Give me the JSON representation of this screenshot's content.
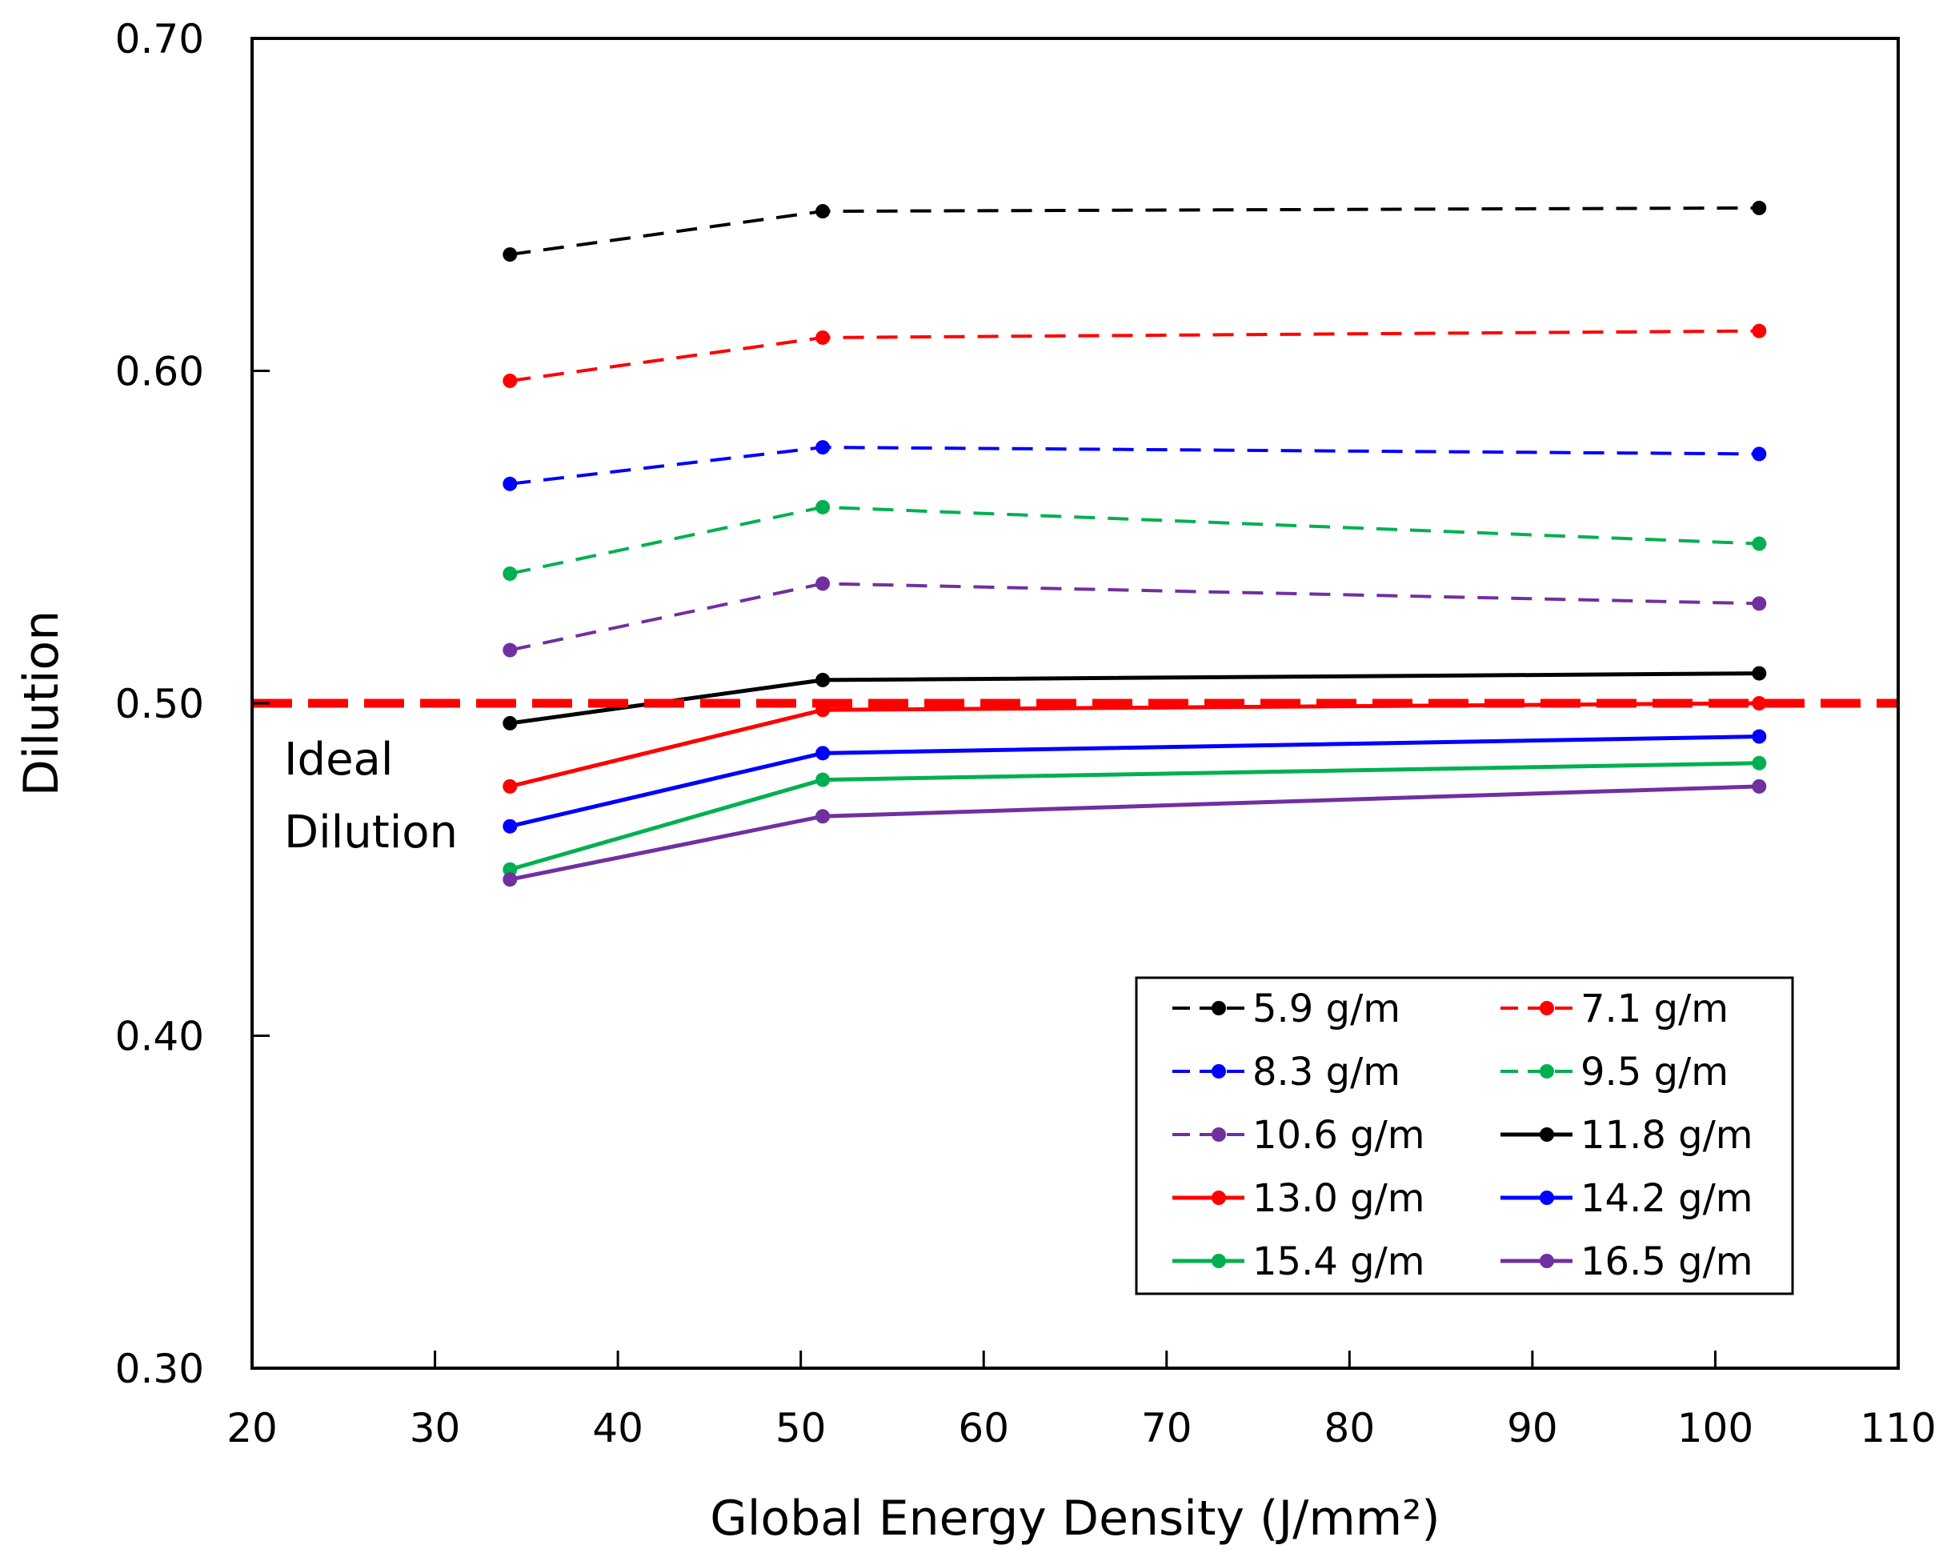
{
  "chart_data": {
    "type": "line",
    "title": "",
    "xlabel": "Global Energy Density (J/mm²)",
    "ylabel": "Dilution",
    "xlim": [
      20,
      110
    ],
    "ylim": [
      0.3,
      0.7
    ],
    "x_ticks": [
      20,
      30,
      40,
      50,
      60,
      70,
      80,
      90,
      100,
      110
    ],
    "y_ticks": [
      0.3,
      0.4,
      0.5,
      0.6,
      0.7
    ],
    "x_tick_labels": [
      "20",
      "30",
      "40",
      "50",
      "60",
      "70",
      "80",
      "90",
      "100",
      "110"
    ],
    "y_tick_labels": [
      "0.30",
      "0.40",
      "0.50",
      "0.60",
      "0.70"
    ],
    "grid": false,
    "legend_position": "bottom-right",
    "x": [
      34.1,
      51.2,
      102.4
    ],
    "series": [
      {
        "name": "5.9 g/m",
        "color": "#000000",
        "dash": true,
        "values": [
          0.635,
          0.648,
          0.649
        ]
      },
      {
        "name": "7.1 g/m",
        "color": "#ff0000",
        "dash": true,
        "values": [
          0.597,
          0.61,
          0.612
        ]
      },
      {
        "name": "8.3 g/m",
        "color": "#0000ff",
        "dash": true,
        "values": [
          0.566,
          0.577,
          0.575
        ]
      },
      {
        "name": "9.5 g/m",
        "color": "#00b050",
        "dash": true,
        "values": [
          0.539,
          0.559,
          0.548
        ]
      },
      {
        "name": "10.6 g/m",
        "color": "#7030a0",
        "dash": true,
        "values": [
          0.516,
          0.536,
          0.53
        ]
      },
      {
        "name": "11.8 g/m",
        "color": "#000000",
        "dash": false,
        "values": [
          0.494,
          0.507,
          0.509
        ]
      },
      {
        "name": "13.0 g/m",
        "color": "#ff0000",
        "dash": false,
        "values": [
          0.475,
          0.498,
          0.5
        ]
      },
      {
        "name": "14.2 g/m",
        "color": "#0000ff",
        "dash": false,
        "values": [
          0.463,
          0.485,
          0.49
        ]
      },
      {
        "name": "15.4 g/m",
        "color": "#00b050",
        "dash": false,
        "values": [
          0.45,
          0.477,
          0.482
        ]
      },
      {
        "name": "16.5 g/m",
        "color": "#7030a0",
        "dash": false,
        "values": [
          0.447,
          0.466,
          0.475
        ]
      }
    ],
    "reference_line": {
      "y": 0.5,
      "color": "#ff0000",
      "label_lines": [
        "Ideal",
        "Dilution"
      ]
    }
  }
}
